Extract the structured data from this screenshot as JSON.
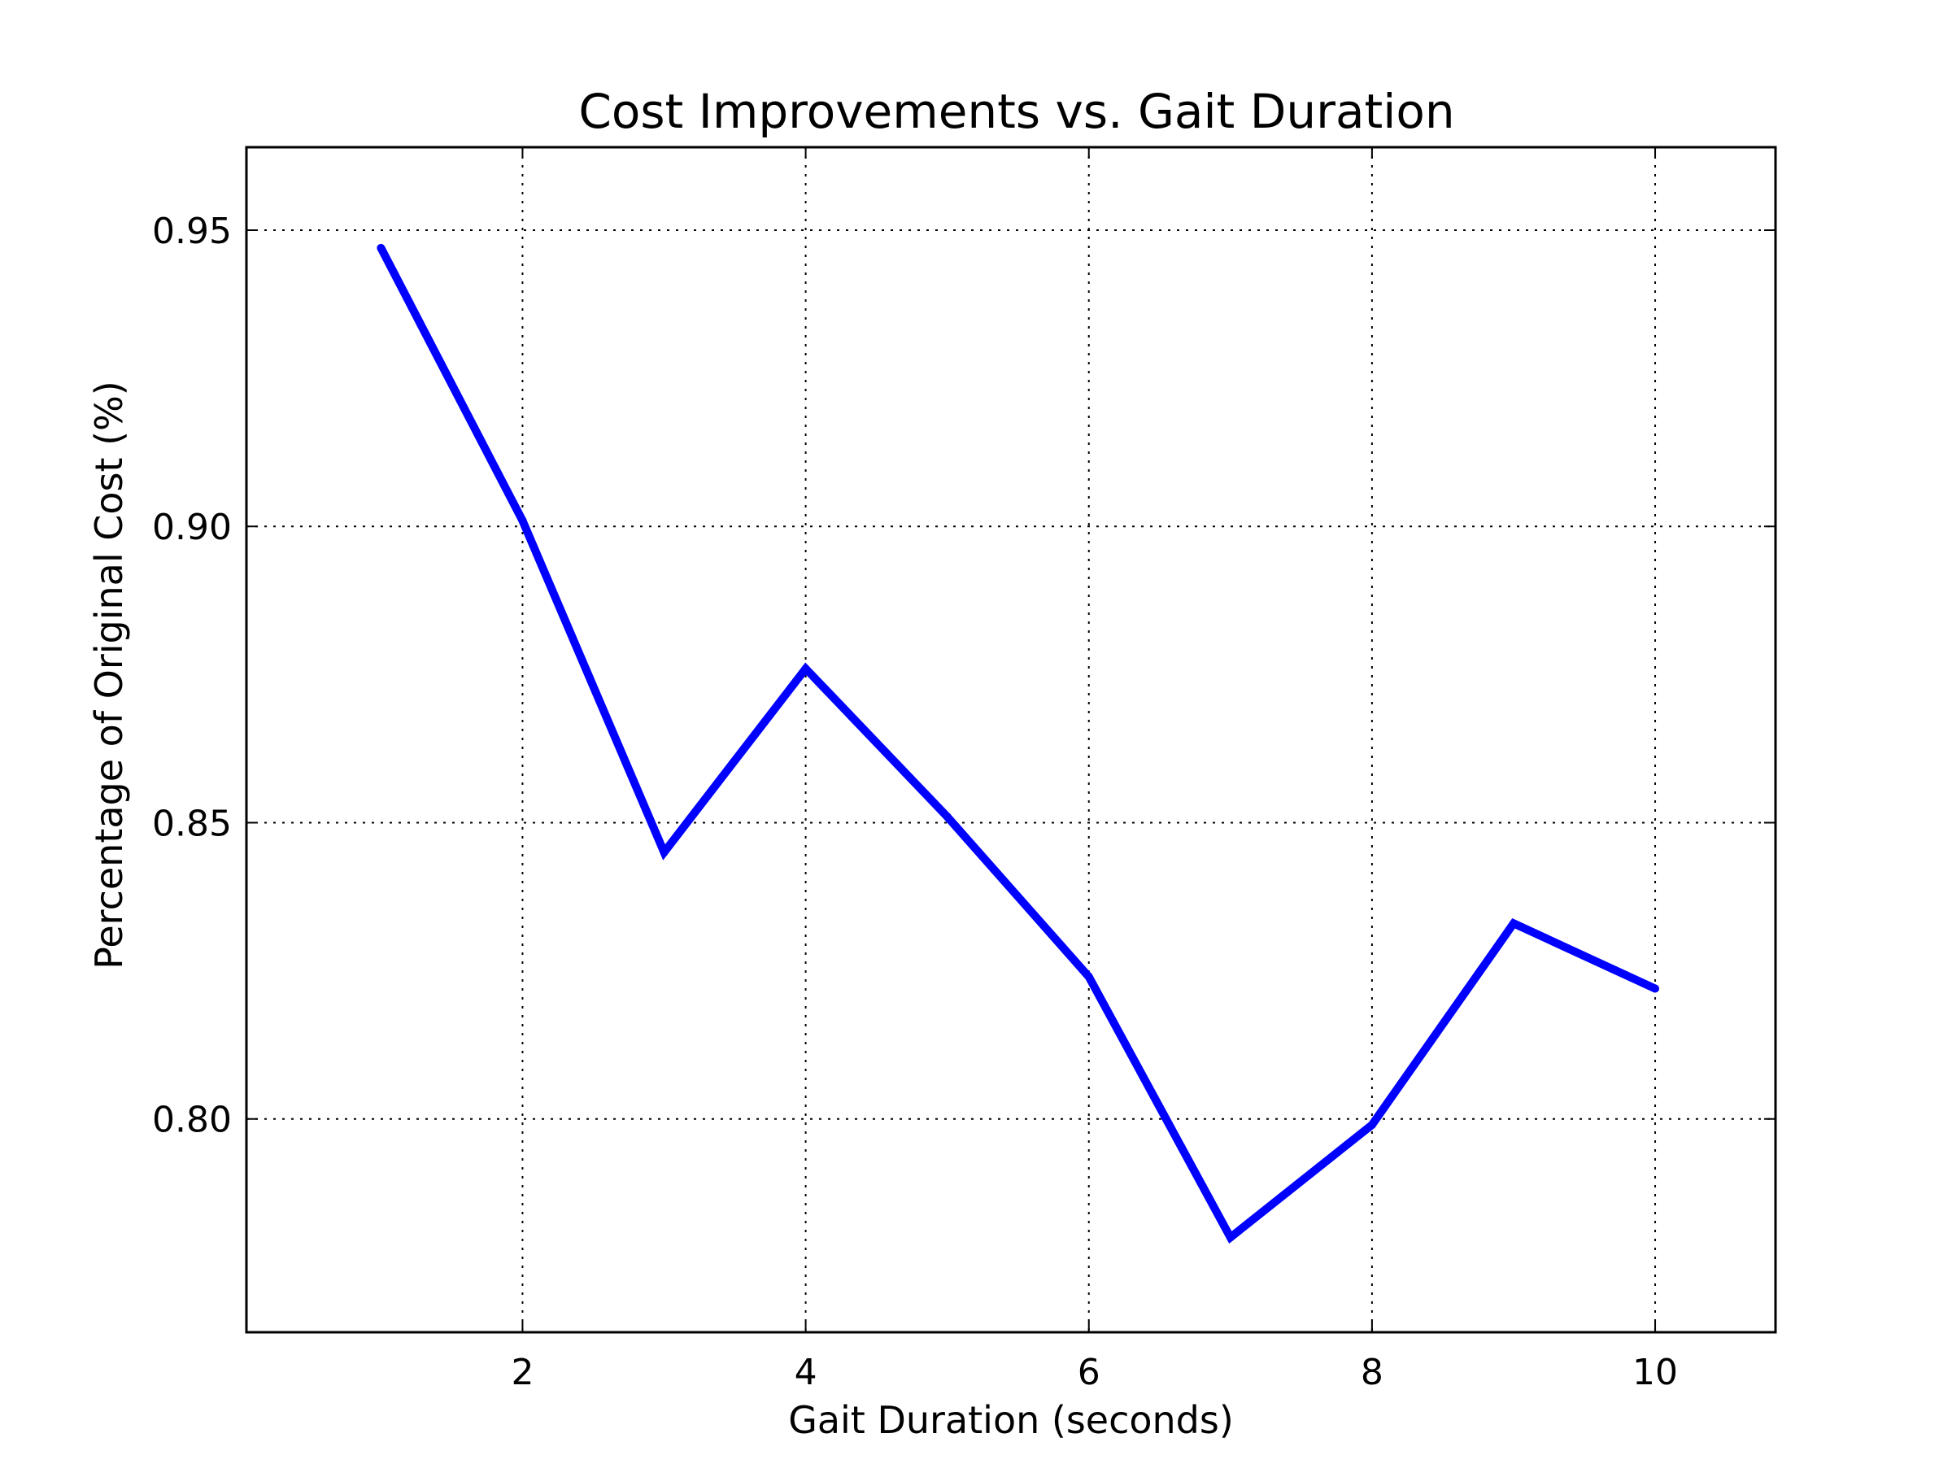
{
  "chart_data": {
    "type": "line",
    "title": "Cost Improvements vs. Gait Duration",
    "xlabel": "Gait Duration (seconds)",
    "ylabel": "Percentage of Original Cost (%)",
    "xlim": [
      0.05,
      10.85
    ],
    "ylim": [
      0.764,
      0.964
    ],
    "xticks": [
      2,
      4,
      6,
      8,
      10
    ],
    "xtick_labels": [
      "2",
      "4",
      "6",
      "8",
      "10"
    ],
    "yticks": [
      0.8,
      0.85,
      0.9,
      0.95
    ],
    "ytick_labels": [
      "0.80",
      "0.85",
      "0.90",
      "0.95"
    ],
    "grid": true,
    "line_color": "#0000ff",
    "series": [
      {
        "x": [
          1,
          2,
          3,
          4,
          5,
          6,
          7,
          8,
          9,
          10
        ],
        "values": [
          0.947,
          0.901,
          0.845,
          0.876,
          0.851,
          0.824,
          0.78,
          0.799,
          0.833,
          0.822
        ]
      }
    ]
  }
}
